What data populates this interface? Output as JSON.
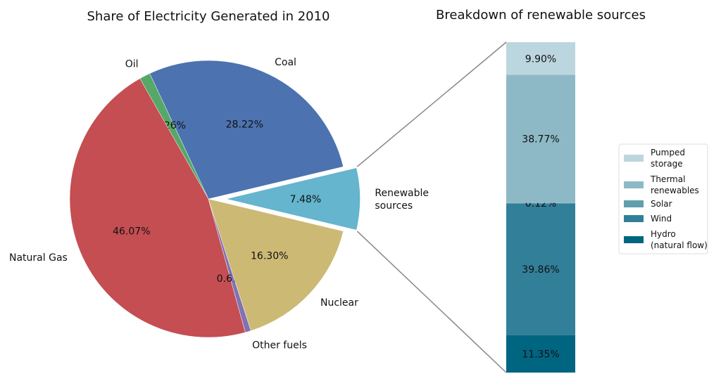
{
  "chart_data": [
    {
      "type": "pie",
      "title": "Share of Electricity Generated in 2010",
      "labels": [
        "Renewable sources",
        "Coal",
        "Oil",
        "Natural Gas",
        "Other fuels",
        "Nuclear"
      ],
      "label_lines": [
        [
          "Renewable",
          "sources"
        ],
        [
          "Coal"
        ],
        [
          "Oil"
        ],
        [
          "Natural Gas"
        ],
        [
          "Other fuels"
        ],
        [
          "Nuclear"
        ]
      ],
      "values": [
        7.48,
        28.22,
        1.26,
        46.07,
        0.67,
        16.3
      ],
      "pct_labels": [
        "7.48%",
        "28.22%",
        "1.26%",
        "46.07%",
        "0.67%",
        "16.30%"
      ],
      "colors": [
        "#64b5cd",
        "#4c72b0",
        "#55a868",
        "#c44e52",
        "#8172b2",
        "#ccb974"
      ],
      "explode": [
        0.1,
        0,
        0,
        0,
        0,
        0
      ]
    },
    {
      "type": "bar",
      "stacked": true,
      "title": "Breakdown of renewable sources",
      "categories": [
        "Hydro (natural flow)",
        "Wind",
        "Solar",
        "Thermal renewables",
        "Pumped storage"
      ],
      "legend_lines": [
        [
          "Hydro",
          "(natural flow)"
        ],
        [
          "Wind"
        ],
        [
          "Solar"
        ],
        [
          "Thermal",
          "renewables"
        ],
        [
          "Pumped",
          "storage"
        ]
      ],
      "values": [
        11.35,
        39.86,
        0.12,
        38.77,
        9.9
      ],
      "pct_labels": [
        "11.35%",
        "39.86%",
        "0.12%",
        "38.77%",
        "9.90%"
      ],
      "colors": [
        "#006580",
        "#327f99",
        "#5e9fae",
        "#8db9c6",
        "#bcd6df"
      ],
      "legend": "right"
    }
  ]
}
